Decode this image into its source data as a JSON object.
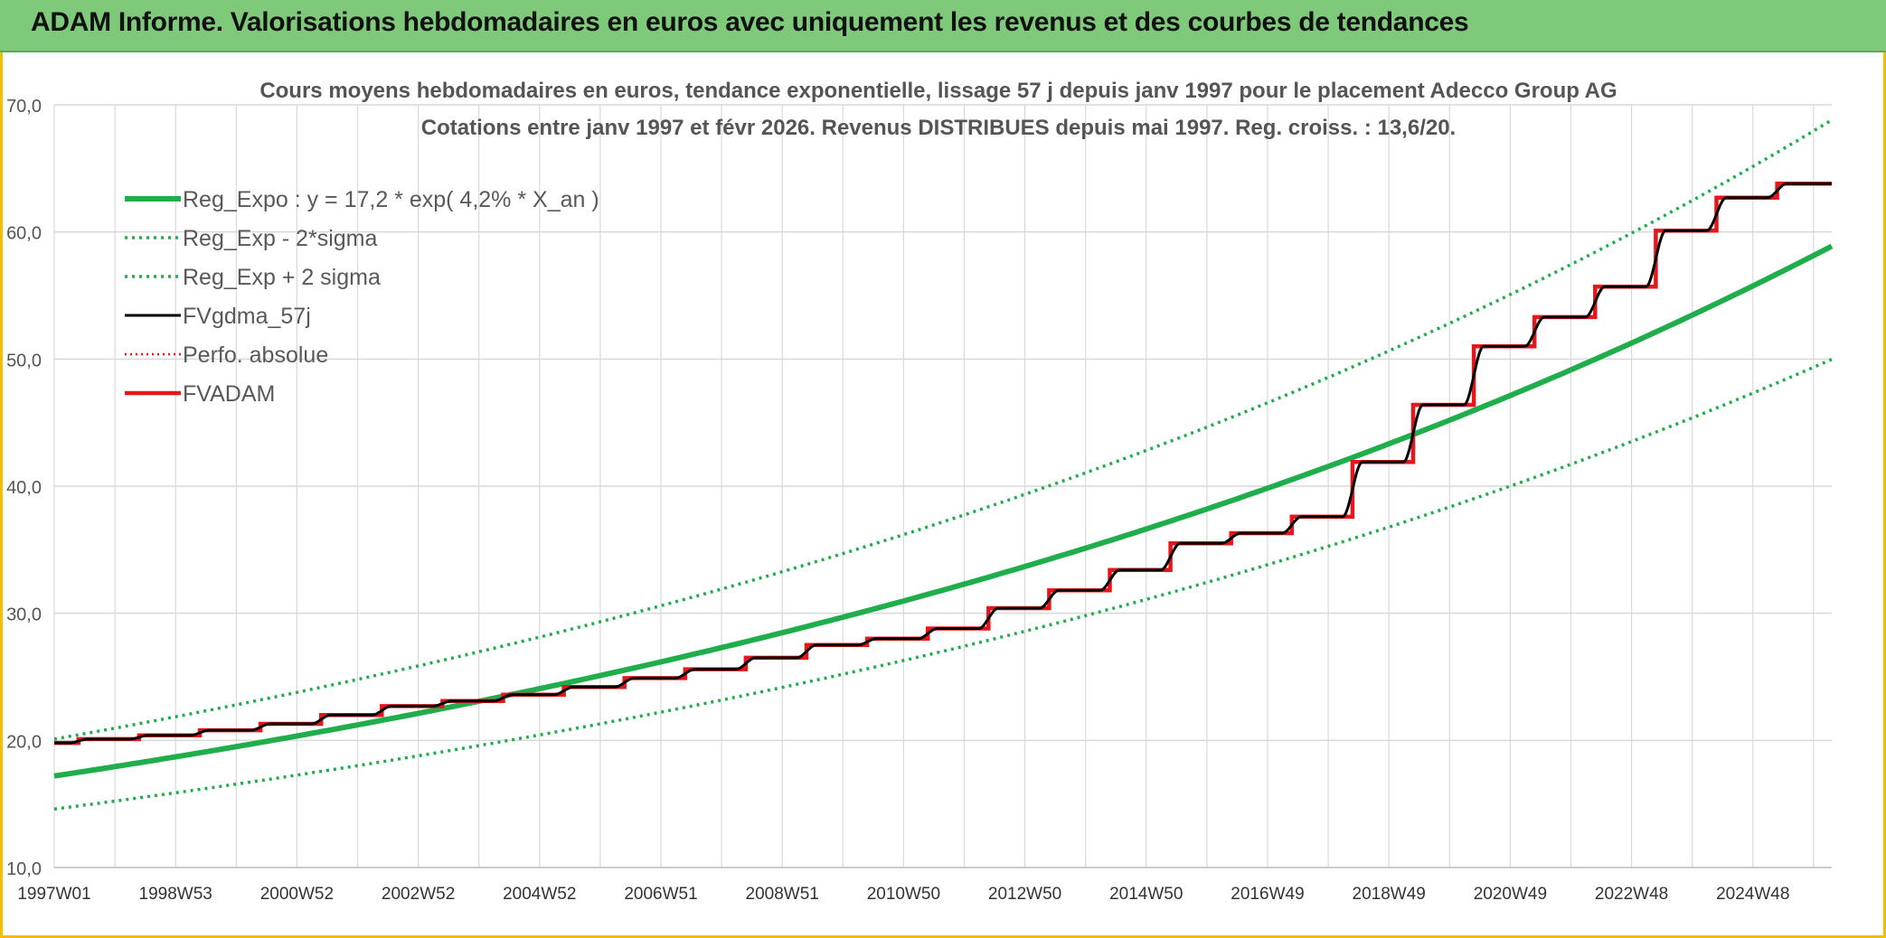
{
  "banner": {
    "title": "ADAM Informe. Valorisations hebdomadaires en euros avec uniquement les revenus et des courbes de tendances"
  },
  "colors": {
    "banner_bg": "#7ec97a",
    "green": "#1fae4b",
    "black": "#000000",
    "red": "#e8161b",
    "grid": "#d9d9d9",
    "border": "#f0c000"
  },
  "chart_data": {
    "type": "line",
    "title": "Cours moyens hebdomadaires en euros, tendance exponentielle, lissage 57 j depuis janv 1997 pour le placement Adecco Group AG",
    "subtitle": "Cotations entre janv 1997 et févr 2026. Revenus DISTRIBUES depuis mai 1997. Reg. croiss. : 13,6/20.",
    "xlabel": "",
    "ylabel": "",
    "ylim": [
      10,
      70
    ],
    "yticks": [
      "10,0",
      "20,0",
      "30,0",
      "40,0",
      "50,0",
      "60,0",
      "70,0"
    ],
    "xlim": [
      1997.0,
      2026.3
    ],
    "xticks": [
      {
        "label": "1997W01",
        "year": 1997.0
      },
      {
        "label": "1998W53",
        "year": 1999.0
      },
      {
        "label": "2000W52",
        "year": 2001.0
      },
      {
        "label": "2002W52",
        "year": 2003.0
      },
      {
        "label": "2004W52",
        "year": 2005.0
      },
      {
        "label": "2006W51",
        "year": 2007.0
      },
      {
        "label": "2008W51",
        "year": 2009.0
      },
      {
        "label": "2010W50",
        "year": 2011.0
      },
      {
        "label": "2012W50",
        "year": 2013.0
      },
      {
        "label": "2014W50",
        "year": 2015.0
      },
      {
        "label": "2016W49",
        "year": 2017.0
      },
      {
        "label": "2018W49",
        "year": 2019.0
      },
      {
        "label": "2020W49",
        "year": 2021.0
      },
      {
        "label": "2022W48",
        "year": 2023.0
      },
      {
        "label": "2024W48",
        "year": 2025.0
      }
    ],
    "grid": true,
    "legend_position": "top-left",
    "series": [
      {
        "name": "Reg_Expo : y = 17,2 * exp( 4,2% *  X_an )",
        "kind": "exp",
        "a": 17.2,
        "b": 0.042,
        "style": "solid-green"
      },
      {
        "name": "Reg_Exp - 2*sigma",
        "kind": "exp",
        "a": 14.6,
        "b": 0.042,
        "style": "dotted-green"
      },
      {
        "name": "Reg_Exp + 2 sigma",
        "kind": "exp",
        "a": 20.1,
        "b": 0.042,
        "style": "dotted-green"
      },
      {
        "name": "FVgdma_57j",
        "kind": "smooth-steps",
        "style": "solid-black"
      },
      {
        "name": "Perfo. absolue",
        "kind": "steps",
        "style": "dotted-red"
      },
      {
        "name": "FVADAM",
        "kind": "steps",
        "style": "solid-red"
      }
    ],
    "steps": {
      "start_year": 1997.0,
      "end_year": 2026.3,
      "initial_value": 19.8,
      "points": [
        [
          1997.4,
          20.1
        ],
        [
          1998.4,
          20.4
        ],
        [
          1999.4,
          20.8
        ],
        [
          2000.4,
          21.3
        ],
        [
          2001.4,
          22.0
        ],
        [
          2002.4,
          22.7
        ],
        [
          2003.4,
          23.1
        ],
        [
          2004.4,
          23.6
        ],
        [
          2005.4,
          24.2
        ],
        [
          2006.4,
          24.9
        ],
        [
          2007.4,
          25.6
        ],
        [
          2008.4,
          26.5
        ],
        [
          2009.4,
          27.5
        ],
        [
          2010.4,
          28.0
        ],
        [
          2011.4,
          28.8
        ],
        [
          2012.4,
          30.4
        ],
        [
          2013.4,
          31.8
        ],
        [
          2014.4,
          33.4
        ],
        [
          2015.4,
          35.5
        ],
        [
          2016.4,
          36.3
        ],
        [
          2017.4,
          37.6
        ],
        [
          2018.4,
          41.9
        ],
        [
          2019.4,
          46.4
        ],
        [
          2020.4,
          51.0
        ],
        [
          2021.4,
          53.3
        ],
        [
          2022.4,
          55.7
        ],
        [
          2023.4,
          60.1
        ],
        [
          2024.4,
          62.7
        ],
        [
          2025.4,
          63.8
        ]
      ]
    }
  }
}
